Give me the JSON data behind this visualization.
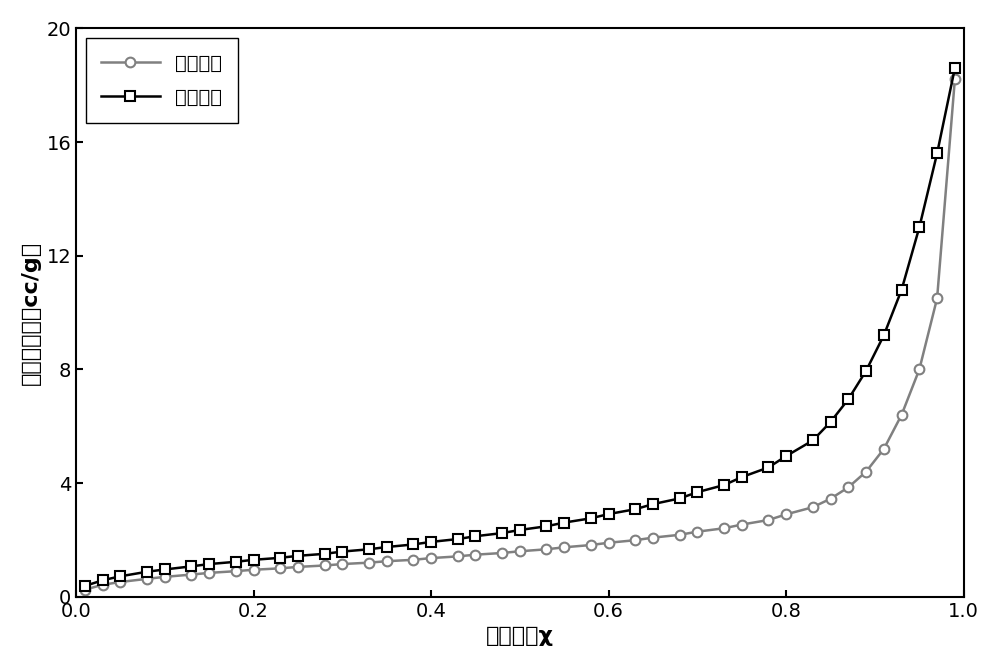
{
  "adsorption_x": [
    0.01,
    0.03,
    0.05,
    0.08,
    0.1,
    0.13,
    0.15,
    0.18,
    0.2,
    0.23,
    0.25,
    0.28,
    0.3,
    0.33,
    0.35,
    0.38,
    0.4,
    0.43,
    0.45,
    0.48,
    0.5,
    0.53,
    0.55,
    0.58,
    0.6,
    0.63,
    0.65,
    0.68,
    0.7,
    0.73,
    0.75,
    0.78,
    0.8,
    0.83,
    0.85,
    0.87,
    0.89,
    0.91,
    0.93,
    0.95,
    0.97,
    0.99
  ],
  "adsorption_y": [
    0.25,
    0.42,
    0.52,
    0.63,
    0.7,
    0.78,
    0.84,
    0.9,
    0.95,
    1.0,
    1.05,
    1.1,
    1.15,
    1.2,
    1.25,
    1.3,
    1.36,
    1.42,
    1.48,
    1.54,
    1.6,
    1.67,
    1.74,
    1.82,
    1.9,
    1.99,
    2.08,
    2.18,
    2.29,
    2.41,
    2.54,
    2.7,
    2.9,
    3.15,
    3.45,
    3.85,
    4.4,
    5.2,
    6.4,
    8.0,
    10.5,
    18.2
  ],
  "desorption_x": [
    0.01,
    0.03,
    0.05,
    0.08,
    0.1,
    0.13,
    0.15,
    0.18,
    0.2,
    0.23,
    0.25,
    0.28,
    0.3,
    0.33,
    0.35,
    0.38,
    0.4,
    0.43,
    0.45,
    0.48,
    0.5,
    0.53,
    0.55,
    0.58,
    0.6,
    0.63,
    0.65,
    0.68,
    0.7,
    0.73,
    0.75,
    0.78,
    0.8,
    0.83,
    0.85,
    0.87,
    0.89,
    0.91,
    0.93,
    0.95,
    0.97,
    0.99
  ],
  "desorption_y": [
    0.38,
    0.58,
    0.72,
    0.88,
    0.96,
    1.07,
    1.15,
    1.23,
    1.3,
    1.37,
    1.44,
    1.51,
    1.59,
    1.67,
    1.75,
    1.84,
    1.93,
    2.03,
    2.13,
    2.24,
    2.35,
    2.48,
    2.61,
    2.76,
    2.91,
    3.08,
    3.26,
    3.46,
    3.68,
    3.93,
    4.21,
    4.55,
    4.95,
    5.5,
    6.15,
    6.95,
    7.95,
    9.2,
    10.8,
    13.0,
    15.6,
    18.6
  ],
  "xlabel": "相对压力χ",
  "ylabel": "氯气吸附量（cc/g）",
  "adsorption_label": "吸附曲线",
  "desorption_label": "脱附曲线",
  "xlim": [
    0.0,
    1.0
  ],
  "ylim": [
    0,
    20
  ],
  "yticks": [
    0,
    4,
    8,
    12,
    16,
    20
  ],
  "xticks": [
    0.0,
    0.2,
    0.4,
    0.6,
    0.8,
    1.0
  ],
  "adsorption_color": "#808080",
  "desorption_color": "#000000",
  "line_width": 1.8,
  "marker_size": 7,
  "font_size_label": 16,
  "font_size_tick": 14,
  "font_size_legend": 14,
  "background_color": "#ffffff"
}
